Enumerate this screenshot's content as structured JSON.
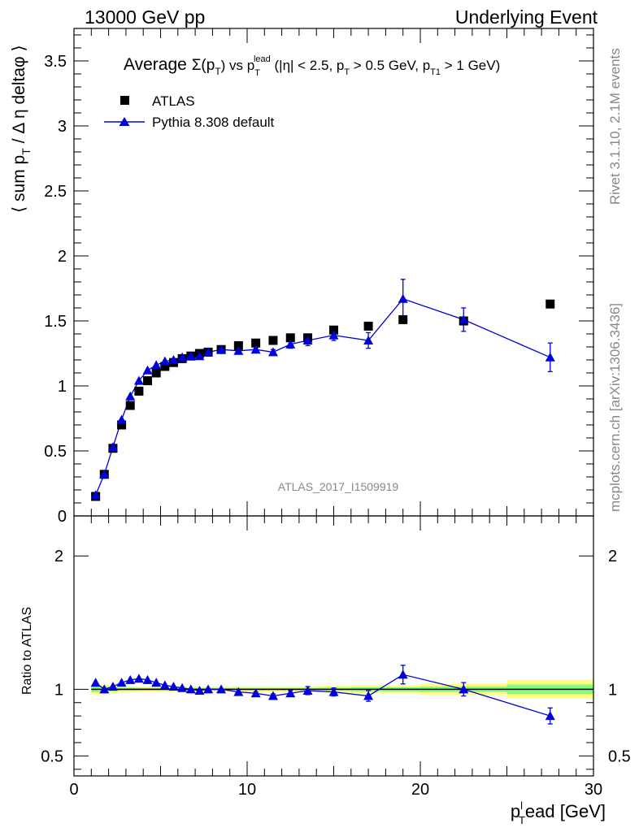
{
  "header": {
    "left": "13000 GeV pp",
    "right": "Underlying Event"
  },
  "side_labels": {
    "rivet": "Rivet 3.1.10,  2.1M events",
    "mcplots": "mcplots.cern.ch [arXiv:1306.3436]"
  },
  "watermark": "ATLAS_2017_I1509919",
  "colors": {
    "data": "#000000",
    "mc": "#0000dd",
    "band_inner": "#7fff7f",
    "band_outer": "#ffff80"
  },
  "chart_data": [
    {
      "type": "scatter",
      "title_parts": {
        "main": "Average",
        "sigma": "Σ(p",
        "t_sub": "T",
        "vs": ") vs p",
        "lead_sup": "lead",
        "lead_sub": "T",
        "cut1": " (|η| < 2.5, p",
        "cut_sub1": "T",
        "cut2": " > 0.5 GeV, p",
        "cut_sub2": "T1",
        "cut3": " > 1 GeV)"
      },
      "ylabel_parts": {
        "pre": "⟨ sum p",
        "sub": "T",
        "post": " / Δ η deltaφ ⟩"
      },
      "xlim": [
        0,
        30
      ],
      "ylim": [
        0,
        3.75
      ],
      "yticks": [
        "0",
        "0.5",
        "1",
        "1.5",
        "2",
        "2.5",
        "3",
        "3.5"
      ],
      "legend_placement": "top-left",
      "series": [
        {
          "name": "ATLAS",
          "style": "square-marker",
          "x": [
            1.25,
            1.75,
            2.25,
            2.75,
            3.25,
            3.75,
            4.25,
            4.75,
            5.25,
            5.75,
            6.25,
            6.75,
            7.25,
            7.75,
            8.5,
            9.5,
            10.5,
            11.5,
            12.5,
            13.5,
            15.0,
            17.0,
            19.0,
            22.5,
            27.5
          ],
          "y": [
            0.15,
            0.32,
            0.52,
            0.7,
            0.85,
            0.96,
            1.04,
            1.1,
            1.15,
            1.18,
            1.21,
            1.23,
            1.25,
            1.26,
            1.28,
            1.31,
            1.33,
            1.35,
            1.37,
            1.37,
            1.43,
            1.46,
            1.51,
            1.5,
            1.63
          ]
        },
        {
          "name": "Pythia 8.308 default",
          "style": "triangle-line",
          "x": [
            1.25,
            1.75,
            2.25,
            2.75,
            3.25,
            3.75,
            4.25,
            4.75,
            5.25,
            5.75,
            6.25,
            6.75,
            7.25,
            7.75,
            8.5,
            9.5,
            10.5,
            11.5,
            12.5,
            13.5,
            15.0,
            17.0,
            19.0,
            22.5,
            27.5
          ],
          "y": [
            0.16,
            0.32,
            0.53,
            0.74,
            0.92,
            1.04,
            1.12,
            1.16,
            1.19,
            1.2,
            1.22,
            1.23,
            1.23,
            1.26,
            1.28,
            1.27,
            1.28,
            1.26,
            1.32,
            1.35,
            1.39,
            1.35,
            1.67,
            1.51,
            1.22
          ],
          "yerr": [
            0,
            0,
            0,
            0,
            0,
            0,
            0,
            0,
            0,
            0,
            0,
            0,
            0,
            0,
            0,
            0,
            0.01,
            0.02,
            0.03,
            0.04,
            0.04,
            0.06,
            0.15,
            0.09,
            0.11
          ]
        }
      ]
    },
    {
      "type": "scatter",
      "ylabel": "Ratio to ATLAS",
      "xlabel_parts": {
        "main": "p",
        "sup": "l",
        "sub": "T",
        "rest": "ead [GeV]"
      },
      "xlim": [
        0,
        30
      ],
      "ylim": [
        0.35,
        2.3
      ],
      "xticks": [
        "0",
        "10",
        "20",
        "30"
      ],
      "yticks": [
        "0.5",
        "1",
        "2"
      ],
      "reference_line": 1.0,
      "band_edges": [
        1.0,
        1.5,
        2.0,
        2.5,
        3.0,
        3.5,
        4.0,
        4.5,
        5.0,
        5.5,
        6.0,
        6.5,
        7.0,
        7.5,
        8.0,
        9.0,
        10.0,
        11.0,
        12.0,
        13.0,
        14.0,
        16.0,
        18.0,
        20.0,
        25.0,
        30.0
      ],
      "band_inner": [
        0.02,
        0.02,
        0.015,
        0.012,
        0.012,
        0.01,
        0.01,
        0.01,
        0.01,
        0.01,
        0.01,
        0.01,
        0.01,
        0.01,
        0.01,
        0.01,
        0.01,
        0.01,
        0.01,
        0.01,
        0.012,
        0.015,
        0.015,
        0.02,
        0.035
      ],
      "band_outer": [
        0.04,
        0.035,
        0.03,
        0.025,
        0.02,
        0.02,
        0.02,
        0.02,
        0.02,
        0.02,
        0.02,
        0.02,
        0.02,
        0.02,
        0.02,
        0.02,
        0.02,
        0.02,
        0.02,
        0.02,
        0.025,
        0.03,
        0.03,
        0.04,
        0.07
      ],
      "series": [
        {
          "name": "Pythia 8.308 default",
          "style": "triangle-line",
          "x": [
            1.25,
            1.75,
            2.25,
            2.75,
            3.25,
            3.75,
            4.25,
            4.75,
            5.25,
            5.75,
            6.25,
            6.75,
            7.25,
            7.75,
            8.5,
            9.5,
            10.5,
            11.5,
            12.5,
            13.5,
            15.0,
            17.0,
            19.0,
            22.5,
            27.5
          ],
          "y": [
            1.05,
            1.0,
            1.02,
            1.05,
            1.07,
            1.08,
            1.07,
            1.05,
            1.03,
            1.02,
            1.01,
            1.0,
            0.99,
            1.0,
            1.0,
            0.98,
            0.97,
            0.95,
            0.97,
            0.99,
            0.98,
            0.95,
            1.11,
            1.0,
            0.8
          ],
          "yerr": [
            0,
            0,
            0,
            0,
            0,
            0,
            0,
            0,
            0,
            0,
            0,
            0,
            0,
            0,
            0,
            0,
            0.01,
            0.015,
            0.02,
            0.03,
            0.03,
            0.04,
            0.07,
            0.05,
            0.06
          ]
        }
      ]
    }
  ]
}
